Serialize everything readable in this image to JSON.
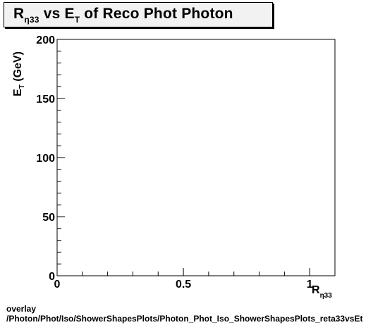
{
  "chart_data": {
    "type": "scatter",
    "title": {
      "main": "R",
      "main_sub": "η33",
      "vs": " vs E",
      "vs_sub": "T",
      "rest": " of Reco Phot Photon"
    },
    "xlabel": {
      "main": "R",
      "sub": "η33"
    },
    "ylabel": {
      "main": "E",
      "sub": "T",
      "rest": " (GeV)"
    },
    "xlim": [
      0,
      1.1
    ],
    "ylim": [
      0,
      200
    ],
    "x_ticks": [
      {
        "value": 0,
        "label": "0"
      },
      {
        "value": 0.5,
        "label": "0.5"
      },
      {
        "value": 1,
        "label": "1"
      }
    ],
    "y_ticks": [
      {
        "value": 0,
        "label": "0"
      },
      {
        "value": 50,
        "label": "50"
      },
      {
        "value": 100,
        "label": "100"
      },
      {
        "value": 150,
        "label": "150"
      },
      {
        "value": 200,
        "label": "200"
      }
    ],
    "x": [],
    "y": [],
    "grid": false,
    "legend": "none"
  },
  "footer": {
    "line1": "overlay",
    "line2": "/Photon/Phot/Iso/ShowerShapesPlots/Photon_Phot_Iso_ShowerShapesPlots_reta33vsEt"
  }
}
